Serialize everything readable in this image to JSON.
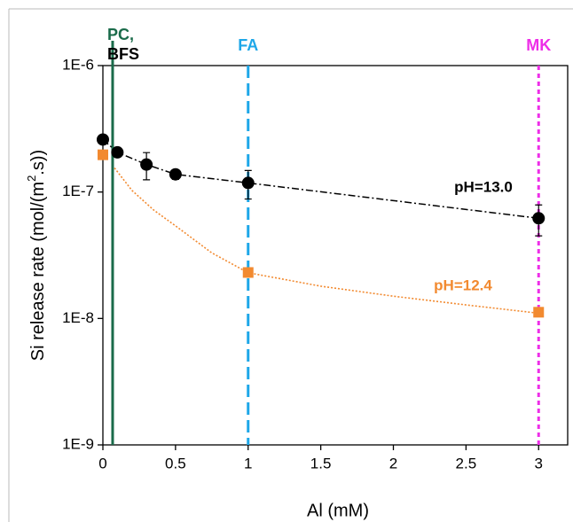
{
  "chart_data": {
    "type": "scatter",
    "xlabel": "Al (mM)",
    "ylabel": [
      "Si release rate (mol/(m",
      "2",
      ".s))"
    ],
    "xlim": [
      0,
      3.2
    ],
    "ylim": [
      1e-09,
      1e-06
    ],
    "log_y": true,
    "xticks": [
      0,
      0.5,
      1,
      1.5,
      2,
      2.5,
      3
    ],
    "yticks": [
      {
        "value": 1e-09,
        "label": "1E-9"
      },
      {
        "value": 1e-08,
        "label": "1E-8"
      },
      {
        "value": 1e-07,
        "label": "1E-7"
      },
      {
        "value": 1e-06,
        "label": "1E-6"
      }
    ],
    "series": [
      {
        "name": "pH=13.0",
        "color": "#000000",
        "marker": "circle",
        "line": "dashdot",
        "x": [
          0,
          0.1,
          0.3,
          0.5,
          1,
          3
        ],
        "values": [
          2.6e-07,
          2.06e-07,
          1.65e-07,
          1.38e-07,
          1.18e-07,
          6.2e-08
        ],
        "errors": [
          1e-08,
          1e-08,
          4e-08,
          1.2e-08,
          3e-08,
          1.7e-08
        ]
      },
      {
        "name": "pH=12.4",
        "color": "#f28a30",
        "marker": "square",
        "line": "none",
        "x": [
          0,
          1,
          3
        ],
        "values": [
          1.97e-07,
          2.31e-08,
          1.12e-08
        ]
      }
    ],
    "fit": {
      "color": "#f28a30",
      "x": [
        0.08,
        0.2,
        0.35,
        0.5,
        0.75,
        1,
        1.5,
        2,
        2.5,
        3
      ],
      "values": [
        1.55e-07,
        1.03e-07,
        7.2e-08,
        5.4e-08,
        3.3e-08,
        2.3e-08,
        1.8e-08,
        1.5e-08,
        1.28e-08,
        1.1e-08
      ]
    },
    "vlines": [
      {
        "x": 0.067,
        "labels": [
          "PC,",
          "BFS"
        ],
        "label_colors": [
          "#1a6b4a",
          "#000000"
        ],
        "color": "#1a6b4a",
        "dash": "none"
      },
      {
        "x": 1,
        "labels": [
          "FA"
        ],
        "label_colors": [
          "#1ea7e8"
        ],
        "color": "#1ea7e8",
        "dash": "14,6"
      },
      {
        "x": 3,
        "labels": [
          "MK"
        ],
        "label_colors": [
          "#ee2ee8"
        ],
        "color": "#ee2ee8",
        "dash": "5,4"
      }
    ]
  }
}
